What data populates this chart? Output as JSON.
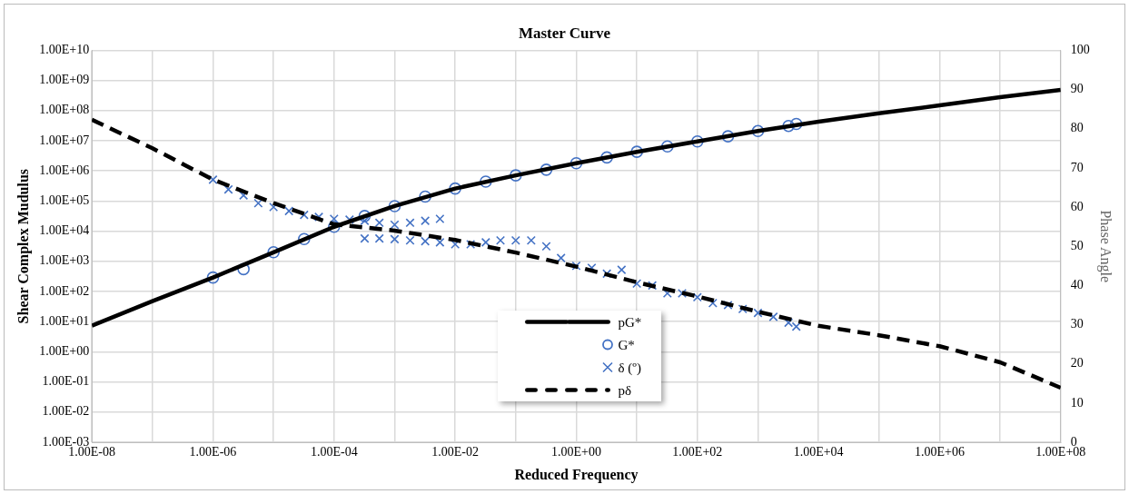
{
  "chart_data": {
    "type": "line",
    "title": "Master Curve",
    "xlabel": "Reduced Frequency",
    "ylabel": "Shear Complex Mudulus",
    "y2label": "Phase Angle",
    "log": "xy",
    "grid": true,
    "legend": "bottom",
    "xlim": [
      1e-08,
      100000000.0
    ],
    "xticks": [
      {
        "value": 1e-08,
        "label": "1.00E-08"
      },
      {
        "value": 1e-07,
        "label": null
      },
      {
        "value": 1e-06,
        "label": "1.00E-06"
      },
      {
        "value": 1e-05,
        "label": null
      },
      {
        "value": 0.0001,
        "label": "1.00E-04"
      },
      {
        "value": 0.001,
        "label": null
      },
      {
        "value": 0.01,
        "label": "1.00E-02"
      },
      {
        "value": 0.1,
        "label": null
      },
      {
        "value": 1,
        "label": "1.00E+00"
      },
      {
        "value": 10,
        "label": null
      },
      {
        "value": 100,
        "label": "1.00E+02"
      },
      {
        "value": 1000,
        "label": null
      },
      {
        "value": 10000,
        "label": "1.00E+04"
      },
      {
        "value": 100000,
        "label": null
      },
      {
        "value": 1000000,
        "label": "1.00E+06"
      },
      {
        "value": 10000000,
        "label": null
      },
      {
        "value": 100000000,
        "label": "1.00E+08"
      }
    ],
    "ylim": [
      0.001,
      10000000000.0
    ],
    "yticks": [
      {
        "value": 0.001,
        "label": "1.00E-03"
      },
      {
        "value": 0.01,
        "label": "1.00E-02"
      },
      {
        "value": 0.1,
        "label": "1.00E-01"
      },
      {
        "value": 1,
        "label": "1.00E+00"
      },
      {
        "value": 10,
        "label": "1.00E+01"
      },
      {
        "value": 100,
        "label": "1.00E+02"
      },
      {
        "value": 1000,
        "label": "1.00E+03"
      },
      {
        "value": 10000,
        "label": "1.00E+04"
      },
      {
        "value": 100000,
        "label": "1.00E+05"
      },
      {
        "value": 1000000,
        "label": "1.00E+06"
      },
      {
        "value": 10000000,
        "label": "1.00E+07"
      },
      {
        "value": 100000000,
        "label": "1.00E+08"
      },
      {
        "value": 1000000000,
        "label": "1.00E+09"
      },
      {
        "value": 10000000000,
        "label": "1.00E+10"
      }
    ],
    "y2lim": [
      0,
      100
    ],
    "y2ticks": [
      0,
      10,
      20,
      30,
      40,
      50,
      60,
      70,
      80,
      90,
      100
    ],
    "series": [
      {
        "name": "pG*",
        "type": "line",
        "color": "#000000",
        "marker": "none",
        "line_style": "solid",
        "x": [
          1e-08,
          1e-07,
          1e-06,
          1e-05,
          0.0001,
          0.001,
          0.01,
          0.1,
          1,
          10,
          100,
          1000,
          10000,
          100000,
          1000000,
          10000000,
          100000000
        ],
        "values": [
          7.4,
          48,
          290,
          2000,
          14000,
          68000,
          260000,
          710000,
          1800000,
          4300000,
          9500000,
          21000000,
          43000000,
          81000000,
          150000000,
          280000000,
          490000000
        ]
      },
      {
        "name": "G*",
        "type": "scatter",
        "color": "#4472c4",
        "marker": "circle",
        "x": [
          1e-06,
          3.2e-06,
          1e-05,
          3.2e-05,
          0.0001,
          0.00032,
          0.001,
          0.0032,
          0.01,
          0.032,
          0.1,
          0.32,
          1,
          3.2,
          10,
          32,
          100,
          320,
          1000,
          3200,
          4300
        ],
        "values": [
          290,
          550,
          2000,
          5500,
          14000,
          32000,
          68000,
          140000,
          260000,
          440000,
          710000,
          1100000,
          1800000,
          2800000,
          4300000,
          6500000,
          9500000,
          14000000,
          21000000,
          31000000,
          36000000
        ]
      },
      {
        "name": "δ (º)",
        "type": "scatter",
        "axis": "y2",
        "color": "#4472c4",
        "marker": "cross",
        "x": [
          1e-06,
          1.8e-06,
          3.2e-06,
          5.6e-06,
          1e-05,
          1.8e-05,
          3.2e-05,
          5.6e-05,
          0.0001,
          0.00018,
          0.00032,
          0.00056,
          0.001,
          0.0018,
          0.0032,
          0.0056,
          0.00032,
          0.00056,
          0.001,
          0.0018,
          0.0032,
          0.0056,
          0.01,
          0.018,
          0.032,
          0.056,
          0.1,
          0.18,
          0.32,
          0.56,
          1,
          1.8,
          3.2,
          5.6,
          10,
          18,
          32,
          56,
          100,
          180,
          320,
          560,
          1000,
          1800,
          3200,
          4300
        ],
        "values": [
          67,
          64.5,
          63,
          61,
          60,
          59,
          58,
          57.5,
          57,
          56.8,
          56.5,
          56,
          55.5,
          56,
          56.5,
          57,
          52,
          52,
          51.8,
          51.5,
          51.3,
          51,
          50.5,
          50.5,
          51,
          51.5,
          51.5,
          51.5,
          50,
          47,
          45,
          44.5,
          43,
          44,
          40.5,
          40,
          38,
          38,
          37,
          35.5,
          35,
          34,
          33,
          32,
          30.5,
          29.5
        ]
      },
      {
        "name": "pδ",
        "type": "line",
        "axis": "y2",
        "color": "#000000",
        "marker": "none",
        "line_style": "dashed",
        "x": [
          1e-08,
          1e-07,
          1e-06,
          1e-05,
          0.0001,
          0.001,
          0.01,
          0.1,
          1,
          10,
          100,
          1000,
          10000,
          100000,
          1000000,
          10000000,
          100000000
        ],
        "values": [
          82.3,
          75,
          67,
          61,
          55.6,
          54,
          51.6,
          48.4,
          44.8,
          40.8,
          37.2,
          33.3,
          29.7,
          27.3,
          24.5,
          20.4,
          13.9
        ]
      }
    ]
  }
}
